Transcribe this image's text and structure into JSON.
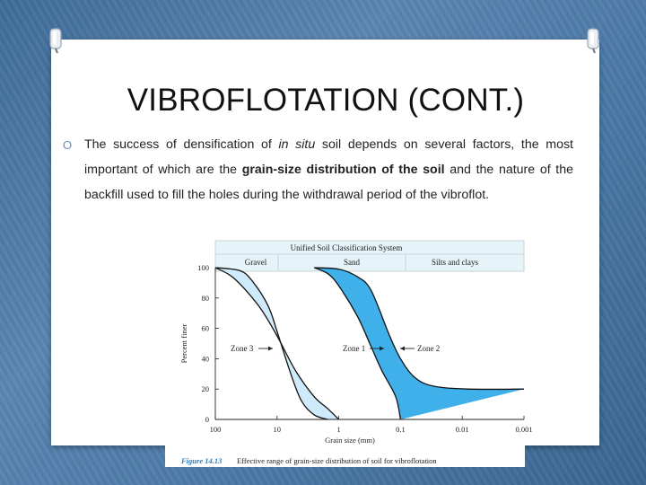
{
  "slide": {
    "title": "VIBROFLOTATION (CONT.)",
    "bullet_marker": "O",
    "paragraph": {
      "part1": "The success of densification of ",
      "italic": "in situ",
      "part2": " soil depends on several factors, the most important of which are the ",
      "bold": "grain-size distribution of the soil",
      "part3": " and the nature of the backfill used to fill the holes during the withdrawal period of the vibroflot."
    }
  },
  "figure": {
    "header_title": "Unified Soil Classification System",
    "class_labels": [
      "Gravel",
      "Sand",
      "Silts and clays"
    ],
    "caption_label": "Figure 14.13",
    "caption_text": "Effective range of grain-size distribution of soil for vibroflotation",
    "colors": {
      "zone_light": "#cfeafa",
      "zone_dark": "#3fb0ea",
      "caption": "#2a7fc4"
    }
  },
  "chart_data": {
    "type": "area",
    "xlabel": "Grain size (mm)",
    "ylabel": "Percent finer",
    "x_scale": "log",
    "x_reversed": true,
    "x_ticks": [
      "100",
      "10",
      "1",
      "0.1",
      "0.01",
      "0.001"
    ],
    "y_ticks": [
      "0",
      "20",
      "40",
      "60",
      "80",
      "100"
    ],
    "xlim": [
      100,
      0.001
    ],
    "ylim": [
      0,
      100
    ],
    "annotations": [
      "Zone 3",
      "Zone 1",
      "Zone 2"
    ],
    "bands": [
      {
        "label": "Zone 3",
        "color": "#cfeafa",
        "upper": [
          [
            100,
            100
          ],
          [
            50,
            93
          ],
          [
            20,
            75
          ],
          [
            10,
            55
          ],
          [
            5,
            32
          ],
          [
            2.5,
            15
          ],
          [
            1.5,
            7
          ],
          [
            1,
            0
          ]
        ],
        "lower": [
          [
            100,
            100
          ],
          [
            40,
            98
          ],
          [
            25,
            91
          ],
          [
            14,
            75
          ],
          [
            10,
            58
          ],
          [
            6,
            30
          ],
          [
            4,
            12
          ],
          [
            2.5,
            3
          ],
          [
            1.5,
            0
          ]
        ]
      },
      {
        "label": "Zone 1",
        "color": "#3fb0ea",
        "upper": [
          [
            2.5,
            100
          ],
          [
            1.5,
            96
          ],
          [
            1,
            88
          ],
          [
            0.5,
            68
          ],
          [
            0.3,
            48
          ],
          [
            0.2,
            32
          ],
          [
            0.12,
            15
          ],
          [
            0.1,
            0
          ]
        ],
        "lower": [
          [
            2.5,
            100
          ],
          [
            1,
            99
          ],
          [
            0.5,
            94
          ],
          [
            0.3,
            85
          ],
          [
            0.15,
            55
          ],
          [
            0.1,
            40
          ],
          [
            0.06,
            28
          ],
          [
            0.03,
            22
          ],
          [
            0.008,
            20
          ],
          [
            0.001,
            20
          ]
        ]
      }
    ]
  }
}
